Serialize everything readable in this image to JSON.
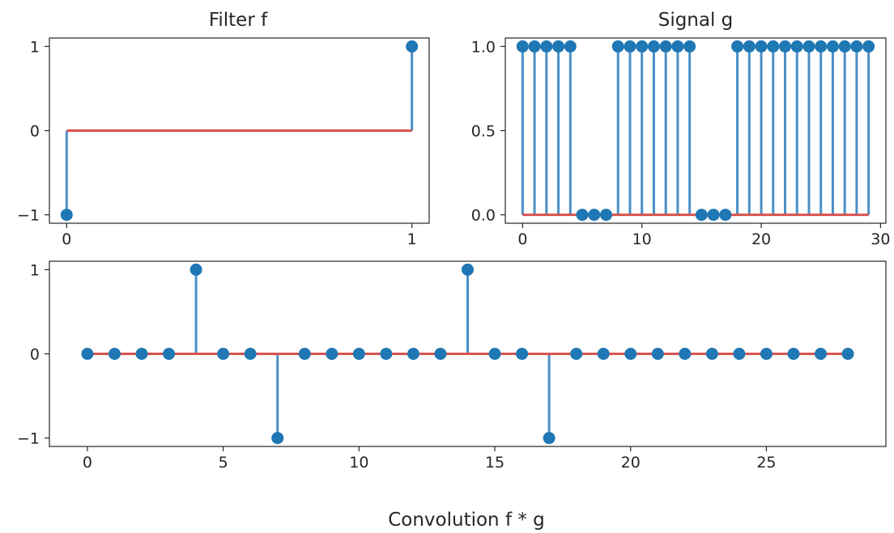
{
  "colors": {
    "stem": "#4b8fc6",
    "marker": "#1f77b4",
    "baseline": "#d9534f",
    "axes": "#262626"
  },
  "chart_data": [
    {
      "type": "stem",
      "title": "Filter f",
      "xlabel": "",
      "ylabel": "",
      "x": [
        0,
        1
      ],
      "values": [
        -1,
        1
      ],
      "baseline": 0,
      "xlim": [
        -0.05,
        1.05
      ],
      "ylim": [
        -1.1,
        1.1
      ],
      "xticks": [
        0,
        1
      ],
      "xtick_labels": [
        "0",
        "1"
      ],
      "yticks": [
        -1,
        0,
        1
      ],
      "ytick_labels": [
        "−1",
        "0",
        "1"
      ]
    },
    {
      "type": "stem",
      "title": "Signal g",
      "xlabel": "",
      "ylabel": "",
      "x": [
        0,
        1,
        2,
        3,
        4,
        5,
        6,
        7,
        8,
        9,
        10,
        11,
        12,
        13,
        14,
        15,
        16,
        17,
        18,
        19,
        20,
        21,
        22,
        23,
        24,
        25,
        26,
        27,
        28,
        29
      ],
      "values": [
        1,
        1,
        1,
        1,
        1,
        0,
        0,
        0,
        1,
        1,
        1,
        1,
        1,
        1,
        1,
        0,
        0,
        0,
        1,
        1,
        1,
        1,
        1,
        1,
        1,
        1,
        1,
        1,
        1,
        1
      ],
      "baseline": 0,
      "xlim": [
        -1.45,
        30.45
      ],
      "ylim": [
        -0.05,
        1.05
      ],
      "xticks": [
        0,
        10,
        20,
        30
      ],
      "xtick_labels": [
        "0",
        "10",
        "20",
        "30"
      ],
      "yticks": [
        0,
        0.5,
        1
      ],
      "ytick_labels": [
        "0.0",
        "0.5",
        "1.0"
      ]
    },
    {
      "type": "stem",
      "title": "",
      "xlabel": "Convolution f * g",
      "ylabel": "",
      "x": [
        0,
        1,
        2,
        3,
        4,
        5,
        6,
        7,
        8,
        9,
        10,
        11,
        12,
        13,
        14,
        15,
        16,
        17,
        18,
        19,
        20,
        21,
        22,
        23,
        24,
        25,
        26,
        27,
        28
      ],
      "values": [
        0,
        0,
        0,
        0,
        1,
        0,
        0,
        -1,
        0,
        0,
        0,
        0,
        0,
        0,
        1,
        0,
        0,
        -1,
        0,
        0,
        0,
        0,
        0,
        0,
        0,
        0,
        0,
        0,
        0
      ],
      "baseline": 0,
      "xlim": [
        -1.4,
        29.4
      ],
      "ylim": [
        -1.1,
        1.1
      ],
      "xticks": [
        0,
        5,
        10,
        15,
        20,
        25
      ],
      "xtick_labels": [
        "0",
        "5",
        "10",
        "15",
        "20",
        "25"
      ],
      "yticks": [
        -1,
        0,
        1
      ],
      "ytick_labels": [
        "−1",
        "0",
        "1"
      ]
    }
  ]
}
